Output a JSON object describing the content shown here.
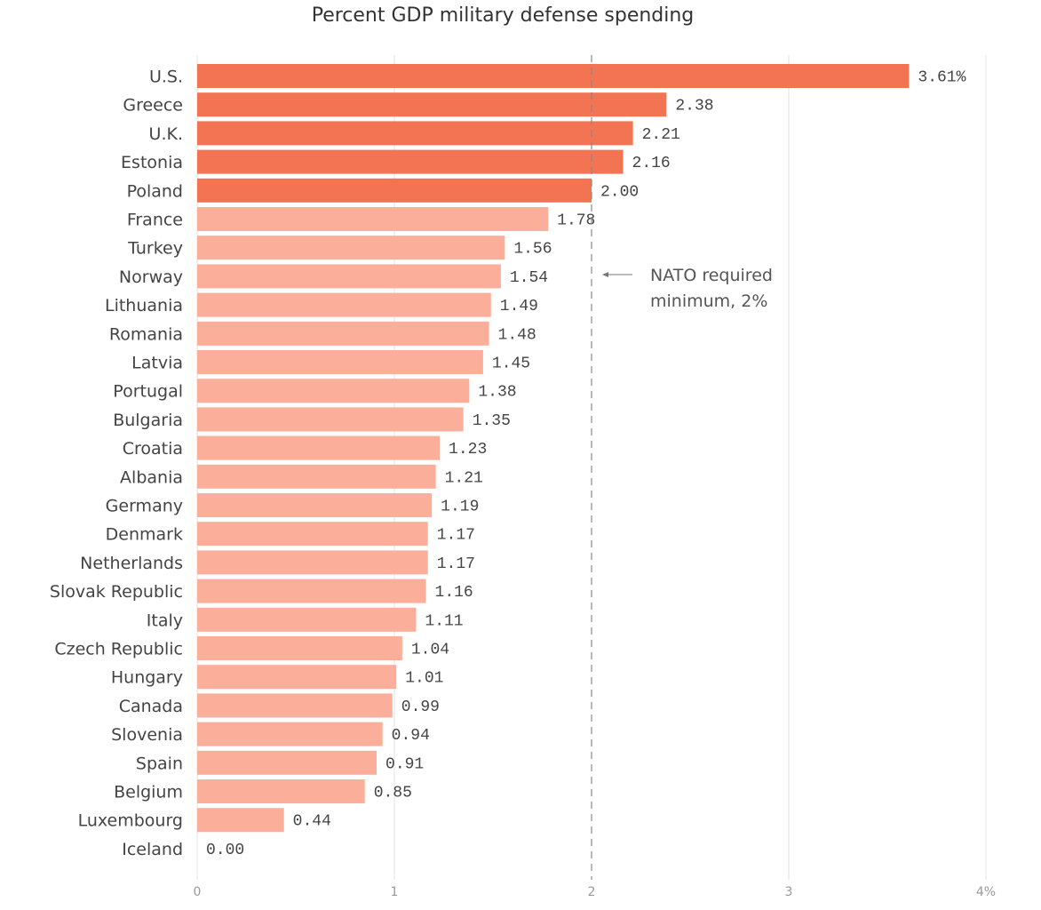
{
  "chart_data": {
    "type": "bar",
    "orientation": "horizontal",
    "title": "Percent GDP military defense spending",
    "xlabel": "",
    "ylabel": "",
    "xlim": [
      0,
      4
    ],
    "x_ticks": [
      0,
      1,
      2,
      3,
      4
    ],
    "x_tick_labels": [
      "0",
      "1",
      "2",
      "3",
      "4%"
    ],
    "grid": true,
    "categories": [
      "U.S.",
      "Greece",
      "U.K.",
      "Estonia",
      "Poland",
      "France",
      "Turkey",
      "Norway",
      "Lithuania",
      "Romania",
      "Latvia",
      "Portugal",
      "Bulgaria",
      "Croatia",
      "Albania",
      "Germany",
      "Denmark",
      "Netherlands",
      "Slovak Republic",
      "Italy",
      "Czech Republic",
      "Hungary",
      "Canada",
      "Slovenia",
      "Spain",
      "Belgium",
      "Luxembourg",
      "Iceland"
    ],
    "values": [
      3.61,
      2.38,
      2.21,
      2.16,
      2.0,
      1.78,
      1.56,
      1.54,
      1.49,
      1.48,
      1.45,
      1.38,
      1.35,
      1.23,
      1.21,
      1.19,
      1.17,
      1.17,
      1.16,
      1.11,
      1.04,
      1.01,
      0.99,
      0.94,
      0.91,
      0.85,
      0.44,
      0.0
    ],
    "value_labels": [
      "3.61%",
      "2.38",
      "2.21",
      "2.16",
      "2.00",
      "1.78",
      "1.56",
      "1.54",
      "1.49",
      "1.48",
      "1.45",
      "1.38",
      "1.35",
      "1.23",
      "1.21",
      "1.19",
      "1.17",
      "1.17",
      "1.16",
      "1.11",
      "1.04",
      "1.01",
      "0.99",
      "0.94",
      "0.91",
      "0.85",
      "0.44",
      "0.00"
    ],
    "threshold": {
      "value": 2,
      "style": "dashed",
      "annotation_lines": [
        "NATO required",
        "minimum, 2%"
      ]
    },
    "colors": {
      "meets_threshold": "#F37452",
      "below_threshold": "#FBAF9A",
      "grid": "#E3E3E3",
      "threshold_line": "#888888",
      "text": "#444444",
      "tick_text": "#999999"
    }
  }
}
